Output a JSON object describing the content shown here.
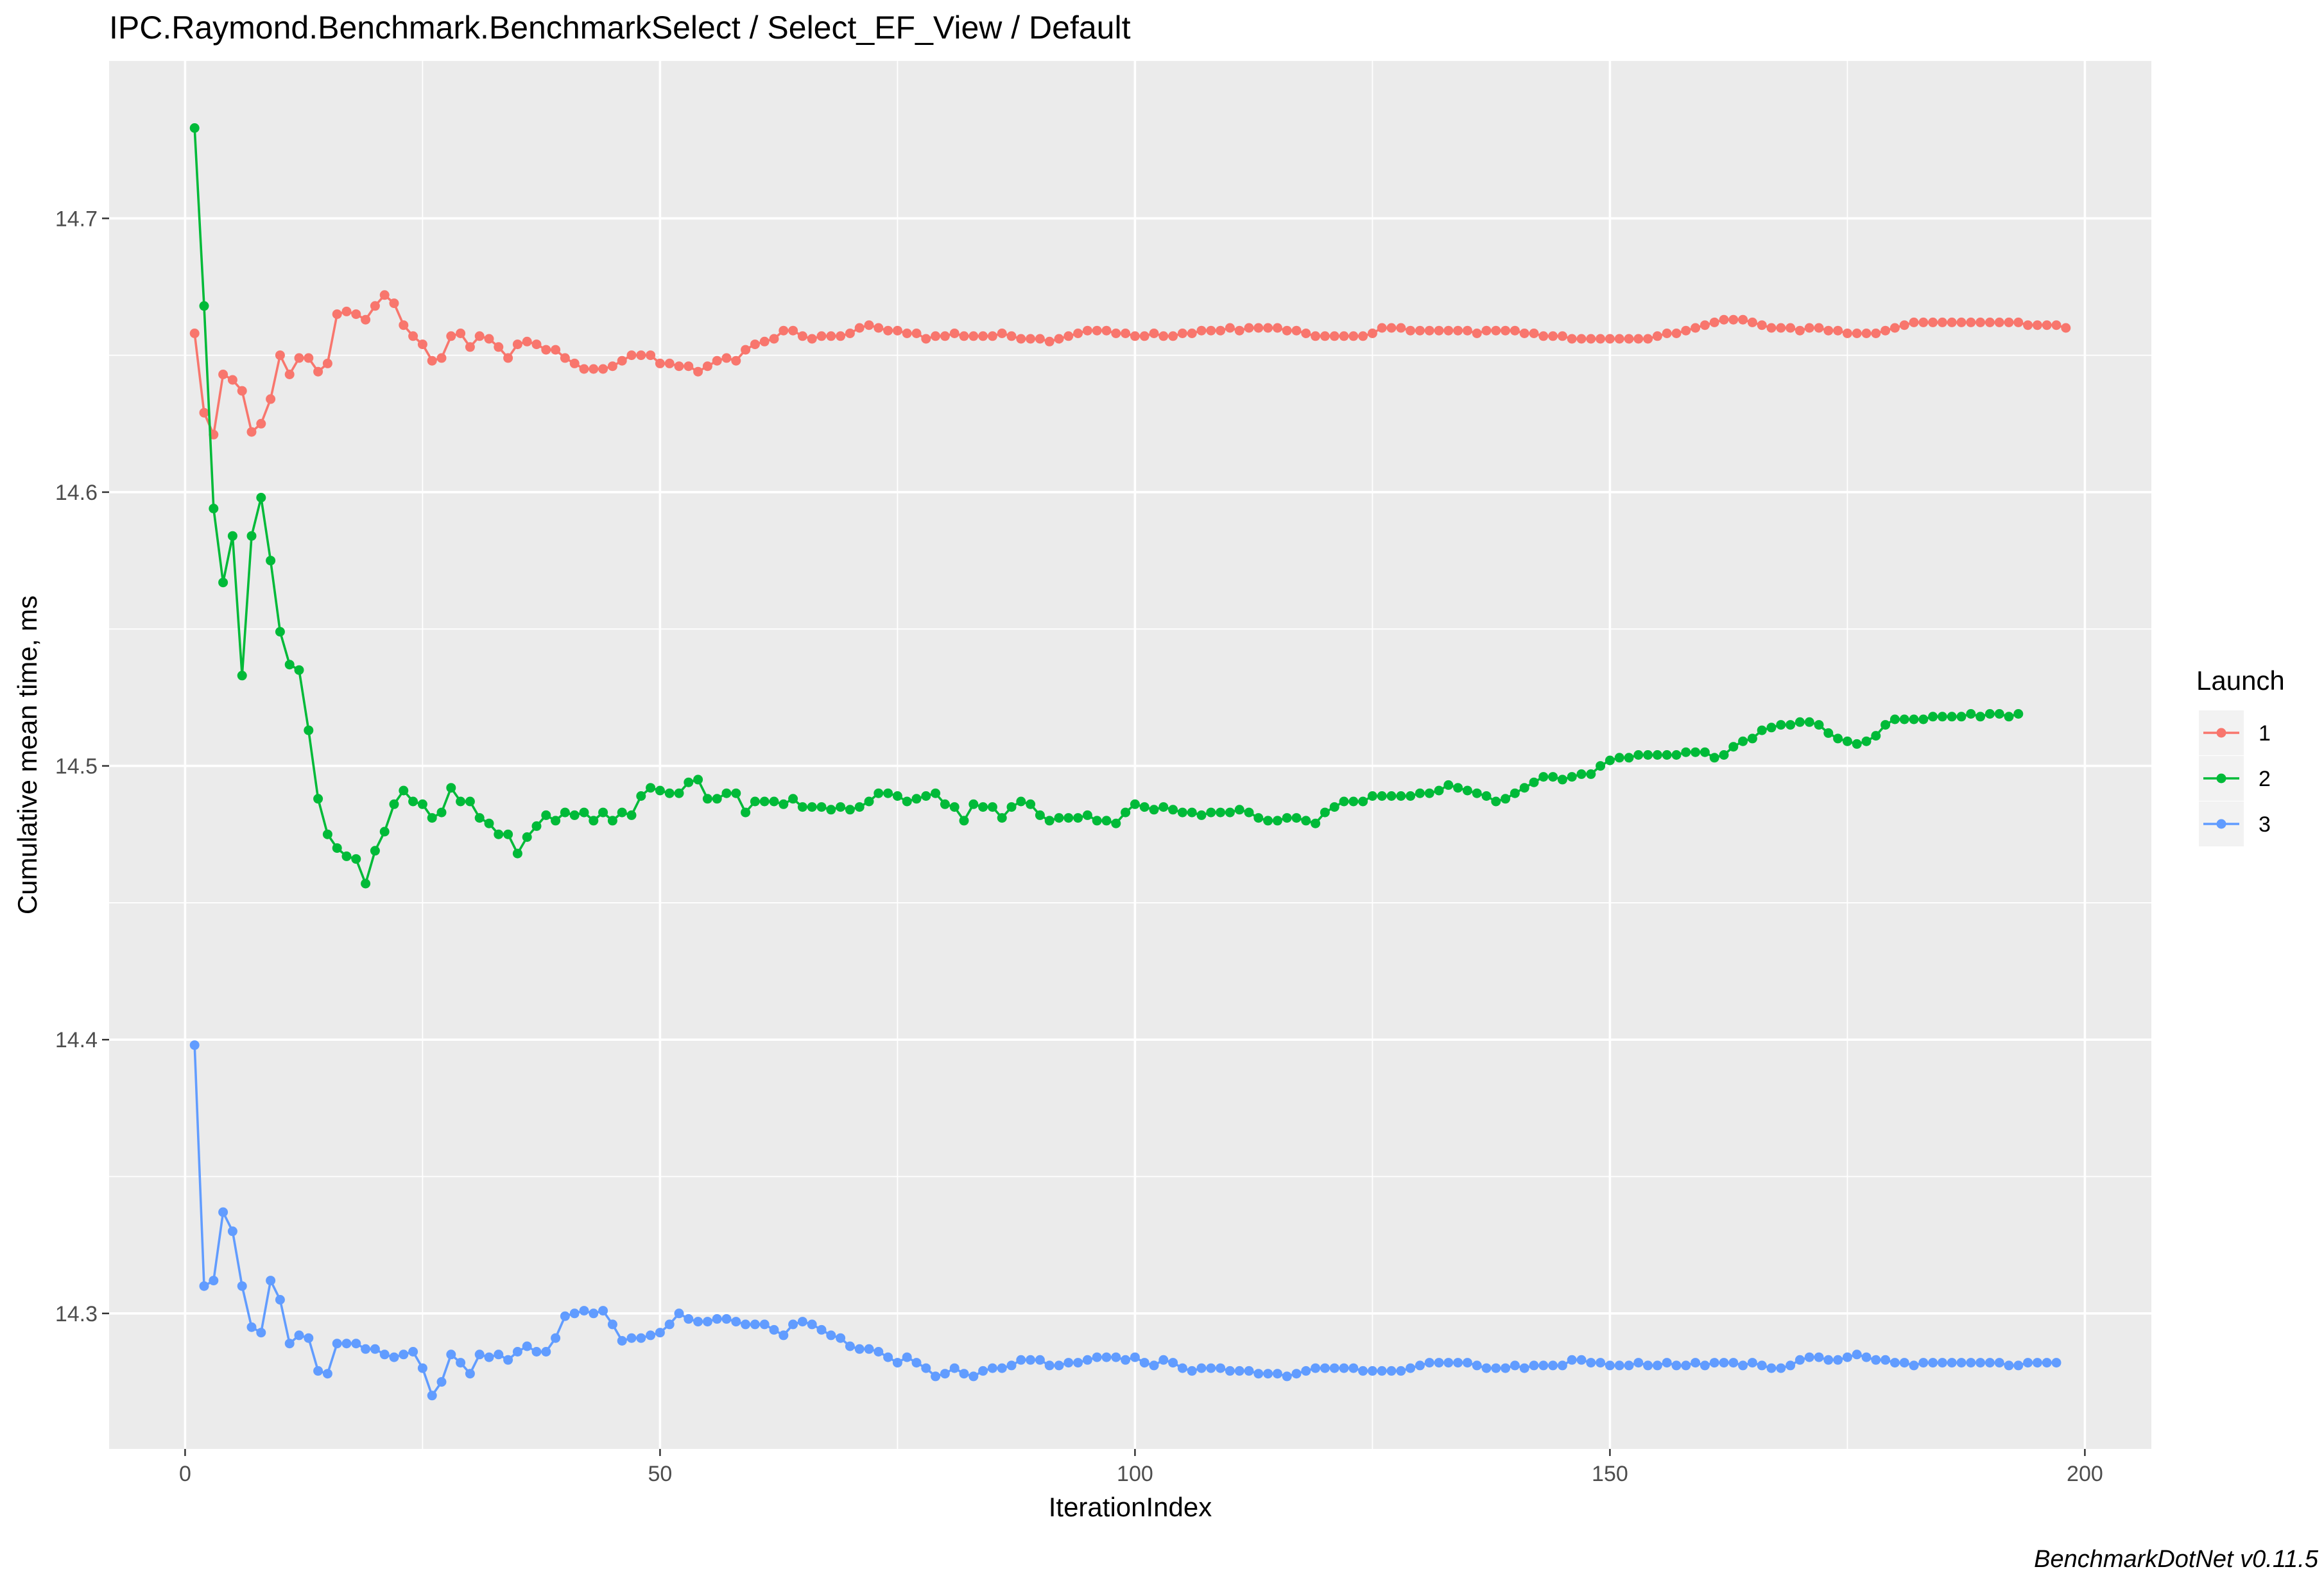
{
  "chart_data": {
    "type": "line",
    "title": "IPC.Raymond.Benchmark.BenchmarkSelect / Select_EF_View / Default",
    "xlabel": "IterationIndex",
    "ylabel": "Cumulative mean time, ms",
    "caption": "BenchmarkDotNet v0.11.5",
    "xlim": [
      -8,
      207
    ],
    "ylim": [
      14.2505,
      14.7575
    ],
    "x_ticks": [
      0,
      50,
      100,
      150,
      200
    ],
    "y_ticks": [
      14.3,
      14.4,
      14.5,
      14.6,
      14.7
    ],
    "x_tick_labels": [
      "0",
      "50",
      "100",
      "150",
      "200"
    ],
    "y_tick_labels": [
      "14.3",
      "14.4",
      "14.5",
      "14.6",
      "14.7"
    ],
    "grid": true,
    "markers": true,
    "legend": {
      "title": "Launch",
      "position": "right"
    },
    "series": [
      {
        "name": "1",
        "color": "#F8766D",
        "values": [
          14.658,
          14.629,
          14.621,
          14.643,
          14.641,
          14.637,
          14.622,
          14.625,
          14.634,
          14.65,
          14.643,
          14.649,
          14.649,
          14.644,
          14.647,
          14.665,
          14.666,
          14.665,
          14.663,
          14.668,
          14.672,
          14.669,
          14.661,
          14.657,
          14.654,
          14.648,
          14.649,
          14.657,
          14.658,
          14.653,
          14.657,
          14.656,
          14.653,
          14.649,
          14.654,
          14.655,
          14.654,
          14.652,
          14.652,
          14.649,
          14.647,
          14.645,
          14.645,
          14.645,
          14.646,
          14.648,
          14.65,
          14.65,
          14.65,
          14.647,
          14.647,
          14.646,
          14.646,
          14.644,
          14.646,
          14.648,
          14.649,
          14.648,
          14.652,
          14.654,
          14.655,
          14.656,
          14.659,
          14.659,
          14.657,
          14.656,
          14.657,
          14.657,
          14.657,
          14.658,
          14.66,
          14.661,
          14.66,
          14.659,
          14.659,
          14.658,
          14.658,
          14.656,
          14.657,
          14.657,
          14.658,
          14.657,
          14.657,
          14.657,
          14.657,
          14.658,
          14.657,
          14.656,
          14.656,
          14.656,
          14.655,
          14.656,
          14.657,
          14.658,
          14.659,
          14.659,
          14.659,
          14.658,
          14.658,
          14.657,
          14.657,
          14.658,
          14.657,
          14.657,
          14.658,
          14.658,
          14.659,
          14.659,
          14.659,
          14.66,
          14.659,
          14.66,
          14.66,
          14.66,
          14.66,
          14.659,
          14.659,
          14.658,
          14.657,
          14.657,
          14.657,
          14.657,
          14.657,
          14.657,
          14.658,
          14.66,
          14.66,
          14.66,
          14.659,
          14.659,
          14.659,
          14.659,
          14.659,
          14.659,
          14.659,
          14.658,
          14.659,
          14.659,
          14.659,
          14.659,
          14.658,
          14.658,
          14.657,
          14.657,
          14.657,
          14.656,
          14.656,
          14.656,
          14.656,
          14.656,
          14.656,
          14.656,
          14.656,
          14.656,
          14.657,
          14.658,
          14.658,
          14.659,
          14.66,
          14.661,
          14.662,
          14.663,
          14.663,
          14.663,
          14.662,
          14.661,
          14.66,
          14.66,
          14.66,
          14.659,
          14.66,
          14.66,
          14.659,
          14.659,
          14.658,
          14.658,
          14.658,
          14.658,
          14.659,
          14.66,
          14.661,
          14.662,
          14.662,
          14.662,
          14.662,
          14.662,
          14.662,
          14.662,
          14.662,
          14.662,
          14.662,
          14.662,
          14.662,
          14.661,
          14.661,
          14.661,
          14.661,
          14.66
        ]
      },
      {
        "name": "2",
        "color": "#00BA38",
        "values": [
          14.733,
          14.668,
          14.594,
          14.567,
          14.584,
          14.533,
          14.584,
          14.598,
          14.575,
          14.549,
          14.537,
          14.535,
          14.513,
          14.488,
          14.475,
          14.47,
          14.467,
          14.466,
          14.457,
          14.469,
          14.476,
          14.486,
          14.491,
          14.487,
          14.486,
          14.481,
          14.483,
          14.492,
          14.487,
          14.487,
          14.481,
          14.479,
          14.475,
          14.475,
          14.468,
          14.474,
          14.478,
          14.482,
          14.48,
          14.483,
          14.482,
          14.483,
          14.48,
          14.483,
          14.48,
          14.483,
          14.482,
          14.489,
          14.492,
          14.491,
          14.49,
          14.49,
          14.494,
          14.495,
          14.488,
          14.488,
          14.49,
          14.49,
          14.483,
          14.487,
          14.487,
          14.487,
          14.486,
          14.488,
          14.485,
          14.485,
          14.485,
          14.484,
          14.485,
          14.484,
          14.485,
          14.487,
          14.49,
          14.49,
          14.489,
          14.487,
          14.488,
          14.489,
          14.49,
          14.486,
          14.485,
          14.48,
          14.486,
          14.485,
          14.485,
          14.481,
          14.485,
          14.487,
          14.486,
          14.482,
          14.48,
          14.481,
          14.481,
          14.481,
          14.482,
          14.48,
          14.48,
          14.479,
          14.483,
          14.486,
          14.485,
          14.484,
          14.485,
          14.484,
          14.483,
          14.483,
          14.482,
          14.483,
          14.483,
          14.483,
          14.484,
          14.483,
          14.481,
          14.48,
          14.48,
          14.481,
          14.481,
          14.48,
          14.479,
          14.483,
          14.485,
          14.487,
          14.487,
          14.487,
          14.489,
          14.489,
          14.489,
          14.489,
          14.489,
          14.49,
          14.49,
          14.491,
          14.493,
          14.492,
          14.491,
          14.49,
          14.489,
          14.487,
          14.488,
          14.49,
          14.492,
          14.494,
          14.496,
          14.496,
          14.495,
          14.496,
          14.497,
          14.497,
          14.5,
          14.502,
          14.503,
          14.503,
          14.504,
          14.504,
          14.504,
          14.504,
          14.504,
          14.505,
          14.505,
          14.505,
          14.503,
          14.504,
          14.507,
          14.509,
          14.51,
          14.513,
          14.514,
          14.515,
          14.515,
          14.516,
          14.516,
          14.515,
          14.512,
          14.51,
          14.509,
          14.508,
          14.509,
          14.511,
          14.515,
          14.517,
          14.517,
          14.517,
          14.517,
          14.518,
          14.518,
          14.518,
          14.518,
          14.519,
          14.518,
          14.519,
          14.519,
          14.518,
          14.519
        ]
      },
      {
        "name": "3",
        "color": "#619CFF",
        "values": [
          14.398,
          14.31,
          14.312,
          14.337,
          14.33,
          14.31,
          14.295,
          14.293,
          14.312,
          14.305,
          14.289,
          14.292,
          14.291,
          14.279,
          14.278,
          14.289,
          14.289,
          14.289,
          14.287,
          14.287,
          14.285,
          14.284,
          14.285,
          14.286,
          14.28,
          14.27,
          14.275,
          14.285,
          14.282,
          14.278,
          14.285,
          14.284,
          14.285,
          14.283,
          14.286,
          14.288,
          14.286,
          14.286,
          14.291,
          14.299,
          14.3,
          14.301,
          14.3,
          14.301,
          14.296,
          14.29,
          14.291,
          14.291,
          14.292,
          14.293,
          14.296,
          14.3,
          14.298,
          14.297,
          14.297,
          14.298,
          14.298,
          14.297,
          14.296,
          14.296,
          14.296,
          14.294,
          14.292,
          14.296,
          14.297,
          14.296,
          14.294,
          14.292,
          14.291,
          14.288,
          14.287,
          14.287,
          14.286,
          14.284,
          14.282,
          14.284,
          14.282,
          14.28,
          14.277,
          14.278,
          14.28,
          14.278,
          14.277,
          14.279,
          14.28,
          14.28,
          14.281,
          14.283,
          14.283,
          14.283,
          14.281,
          14.281,
          14.282,
          14.282,
          14.283,
          14.284,
          14.284,
          14.284,
          14.283,
          14.284,
          14.282,
          14.281,
          14.283,
          14.282,
          14.28,
          14.279,
          14.28,
          14.28,
          14.28,
          14.279,
          14.279,
          14.279,
          14.278,
          14.278,
          14.278,
          14.277,
          14.278,
          14.279,
          14.28,
          14.28,
          14.28,
          14.28,
          14.28,
          14.279,
          14.279,
          14.279,
          14.279,
          14.279,
          14.28,
          14.281,
          14.282,
          14.282,
          14.282,
          14.282,
          14.282,
          14.281,
          14.28,
          14.28,
          14.28,
          14.281,
          14.28,
          14.281,
          14.281,
          14.281,
          14.281,
          14.283,
          14.283,
          14.282,
          14.282,
          14.281,
          14.281,
          14.281,
          14.282,
          14.281,
          14.281,
          14.282,
          14.281,
          14.281,
          14.282,
          14.281,
          14.282,
          14.282,
          14.282,
          14.281,
          14.282,
          14.281,
          14.28,
          14.28,
          14.281,
          14.283,
          14.284,
          14.284,
          14.283,
          14.283,
          14.284,
          14.285,
          14.284,
          14.283,
          14.283,
          14.282,
          14.282,
          14.281,
          14.282,
          14.282,
          14.282,
          14.282,
          14.282,
          14.282,
          14.282,
          14.282,
          14.282,
          14.281,
          14.281,
          14.282,
          14.282,
          14.282,
          14.282
        ]
      }
    ]
  }
}
